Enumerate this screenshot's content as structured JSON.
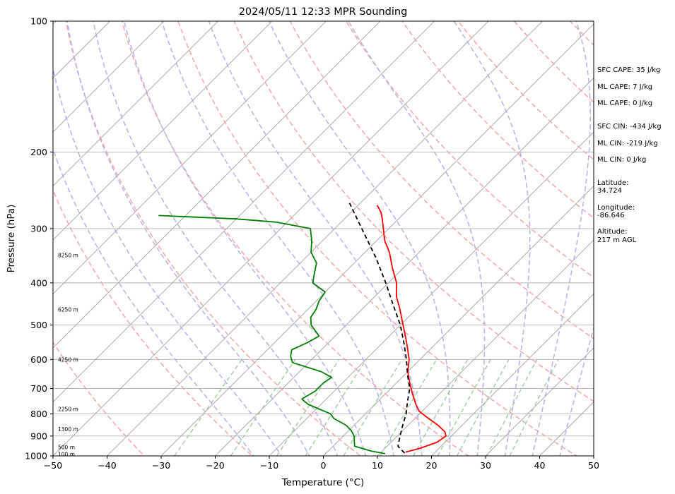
{
  "chart_data": {
    "type": "line",
    "title": "2024/05/11 12:33 MPR Sounding",
    "xlabel": "Temperature (°C)",
    "ylabel": "Pressure (hPa)",
    "xlim": [
      -50,
      50
    ],
    "ylim": [
      1000,
      100
    ],
    "y_scale": "log",
    "grid": true,
    "x_ticks": [
      "−50",
      "−40",
      "−30",
      "−20",
      "−10",
      "0",
      "10",
      "20",
      "30",
      "40",
      "50"
    ],
    "x_tick_values": [
      -50,
      -40,
      -30,
      -20,
      -10,
      0,
      10,
      20,
      30,
      40,
      50
    ],
    "y_ticks": [
      "100",
      "200",
      "300",
      "400",
      "500",
      "600",
      "700",
      "800",
      "900",
      "1000"
    ],
    "y_tick_values": [
      100,
      200,
      300,
      400,
      500,
      600,
      700,
      800,
      900,
      1000
    ],
    "series": [
      {
        "color": "#ff0000",
        "style": "solid",
        "points": [
          {
            "p": 980,
            "t": 14.5
          },
          {
            "p": 960,
            "t": 16.5
          },
          {
            "p": 930,
            "t": 18.5
          },
          {
            "p": 900,
            "t": 19.0
          },
          {
            "p": 880,
            "t": 18.0
          },
          {
            "p": 850,
            "t": 15.5
          },
          {
            "p": 820,
            "t": 12.5
          },
          {
            "p": 790,
            "t": 9.5
          },
          {
            "p": 760,
            "t": 7.5
          },
          {
            "p": 720,
            "t": 5.0
          },
          {
            "p": 680,
            "t": 2.5
          },
          {
            "p": 640,
            "t": 0.0
          },
          {
            "p": 600,
            "t": -2.0
          },
          {
            "p": 550,
            "t": -5.5
          },
          {
            "p": 500,
            "t": -9.5
          },
          {
            "p": 460,
            "t": -13.0
          },
          {
            "p": 430,
            "t": -16.0
          },
          {
            "p": 400,
            "t": -18.5
          },
          {
            "p": 370,
            "t": -22.0
          },
          {
            "p": 340,
            "t": -25.5
          },
          {
            "p": 320,
            "t": -28.5
          },
          {
            "p": 300,
            "t": -31.0
          },
          {
            "p": 285,
            "t": -33.0
          },
          {
            "p": 275,
            "t": -34.5
          },
          {
            "p": 265,
            "t": -36.5
          }
        ]
      },
      {
        "color": "#008000",
        "style": "solid",
        "points": [
          {
            "p": 988,
            "t": 11.0
          },
          {
            "p": 975,
            "t": 8.0
          },
          {
            "p": 950,
            "t": 4.0
          },
          {
            "p": 925,
            "t": 3.0
          },
          {
            "p": 900,
            "t": 2.0
          },
          {
            "p": 875,
            "t": 0.5
          },
          {
            "p": 850,
            "t": -1.5
          },
          {
            "p": 820,
            "t": -5.0
          },
          {
            "p": 800,
            "t": -6.5
          },
          {
            "p": 780,
            "t": -9.5
          },
          {
            "p": 760,
            "t": -12.5
          },
          {
            "p": 740,
            "t": -14.5
          },
          {
            "p": 710,
            "t": -13.5
          },
          {
            "p": 680,
            "t": -13.5
          },
          {
            "p": 660,
            "t": -13.0
          },
          {
            "p": 640,
            "t": -16.0
          },
          {
            "p": 610,
            "t": -23.0
          },
          {
            "p": 590,
            "t": -24.5
          },
          {
            "p": 570,
            "t": -25.5
          },
          {
            "p": 550,
            "t": -24.0
          },
          {
            "p": 530,
            "t": -23.0
          },
          {
            "p": 500,
            "t": -26.5
          },
          {
            "p": 480,
            "t": -28.0
          },
          {
            "p": 460,
            "t": -28.5
          },
          {
            "p": 440,
            "t": -29.5
          },
          {
            "p": 420,
            "t": -30.0
          },
          {
            "p": 400,
            "t": -34.0
          },
          {
            "p": 380,
            "t": -35.5
          },
          {
            "p": 360,
            "t": -37.0
          },
          {
            "p": 340,
            "t": -40.0
          },
          {
            "p": 320,
            "t": -42.0
          },
          {
            "p": 300,
            "t": -44.5
          },
          {
            "p": 290,
            "t": -52.0
          },
          {
            "p": 285,
            "t": -60.0
          },
          {
            "p": 280,
            "t": -75.0
          }
        ]
      },
      {
        "color": "#000000",
        "style": "dashed",
        "points": [
          {
            "p": 985,
            "t": 14.5
          },
          {
            "p": 950,
            "t": 12.0
          },
          {
            "p": 900,
            "t": 10.5
          },
          {
            "p": 850,
            "t": 9.0
          },
          {
            "p": 800,
            "t": 7.5
          },
          {
            "p": 750,
            "t": 5.5
          },
          {
            "p": 700,
            "t": 3.5
          },
          {
            "p": 650,
            "t": 0.5
          },
          {
            "p": 600,
            "t": -2.5
          },
          {
            "p": 550,
            "t": -6.0
          },
          {
            "p": 500,
            "t": -10.0
          },
          {
            "p": 450,
            "t": -15.0
          },
          {
            "p": 400,
            "t": -20.5
          },
          {
            "p": 350,
            "t": -27.0
          },
          {
            "p": 300,
            "t": -35.0
          },
          {
            "p": 262,
            "t": -42.0
          }
        ]
      }
    ],
    "height_labels": [
      {
        "label": "100 m",
        "p": 990
      },
      {
        "label": "500 m",
        "p": 955
      },
      {
        "label": "1300 m",
        "p": 868
      },
      {
        "label": "2250 m",
        "p": 780
      },
      {
        "label": "4250 m",
        "p": 600
      },
      {
        "label": "6250 m",
        "p": 460
      },
      {
        "label": "8250 m",
        "p": 345
      }
    ],
    "annotations": [
      "SFC CAPE: 35 J/kg",
      "ML CAPE: 7 J/kg",
      "ML CAPE: 0 J/kg",
      "SFC CIN: -434 J/kg",
      "ML CIN: -219 J/kg",
      "ML CIN: 0 J/kg",
      "Latitude:",
      "34.724",
      "Longitude:",
      "-86.646",
      "Altitude:",
      "217 m AGL"
    ],
    "colors": {
      "temperature": "#ff0000",
      "dewpoint": "#008000",
      "parcel": "#000000",
      "dry_adiabats": "#f4a6a6",
      "moist_adiabats": "#b4b0ee",
      "mixing_ratio": "#9ccc9c",
      "isotherms": "#a0a0a0"
    }
  }
}
